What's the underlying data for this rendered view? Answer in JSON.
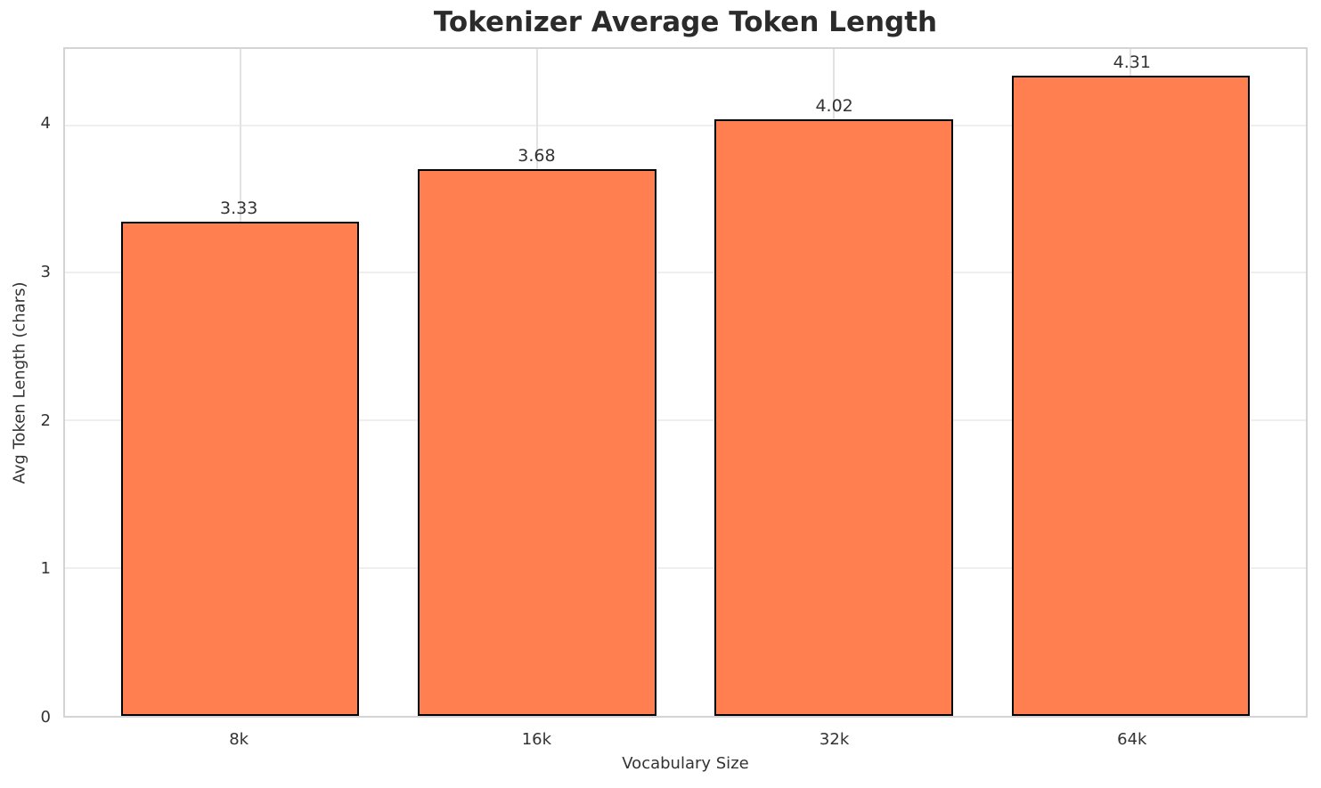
{
  "chart_data": {
    "type": "bar",
    "title": "Tokenizer Average Token Length",
    "xlabel": "Vocabulary Size",
    "ylabel": "Avg Token Length (chars)",
    "categories": [
      "8k",
      "16k",
      "32k",
      "64k"
    ],
    "values": [
      3.33,
      3.68,
      4.02,
      4.31
    ],
    "value_labels": [
      "3.33",
      "3.68",
      "4.02",
      "4.31"
    ],
    "yticks": [
      "0",
      "1",
      "2",
      "3",
      "4"
    ],
    "ylim": [
      0,
      4.516
    ],
    "grid": true,
    "legend_position": "none",
    "colors": {
      "bar_fill": "#ff7f50",
      "bar_edge": "#000000",
      "grid_horizontal": "#efefef",
      "grid_vertical": "#e2e2e2",
      "spine": "#d4d4d4",
      "text": "#333333",
      "title": "#2b2b2b",
      "background": "#ffffff"
    }
  }
}
